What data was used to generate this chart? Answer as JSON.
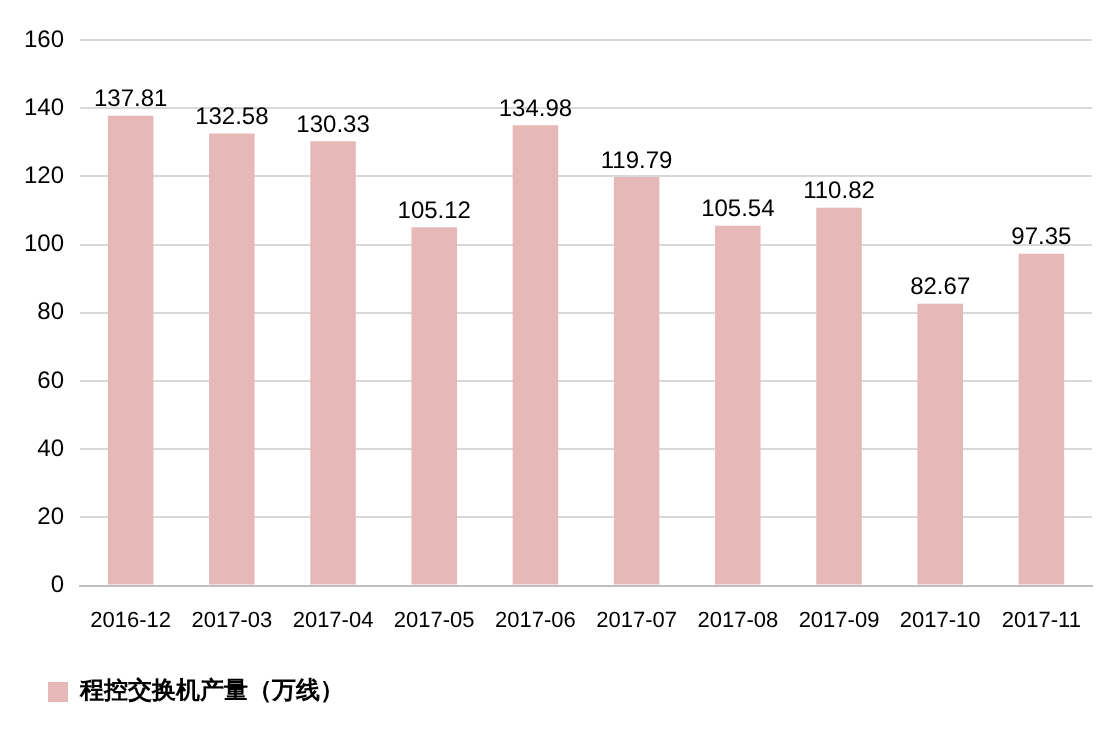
{
  "chart_data": {
    "type": "bar",
    "categories": [
      "2016-12",
      "2017-03",
      "2017-04",
      "2017-05",
      "2017-06",
      "2017-07",
      "2017-08",
      "2017-09",
      "2017-10",
      "2017-11"
    ],
    "series": [
      {
        "name": "程控交换机产量（万线）",
        "color": "#e6b9b8",
        "values": [
          137.81,
          132.58,
          130.33,
          105.12,
          134.98,
          119.79,
          105.54,
          110.82,
          82.67,
          97.35
        ]
      }
    ],
    "ylim": [
      0,
      160
    ],
    "yticks": [
      0,
      20,
      40,
      60,
      80,
      100,
      120,
      140,
      160
    ],
    "grid": "y",
    "legend": "bottom left",
    "data_labels": true
  }
}
